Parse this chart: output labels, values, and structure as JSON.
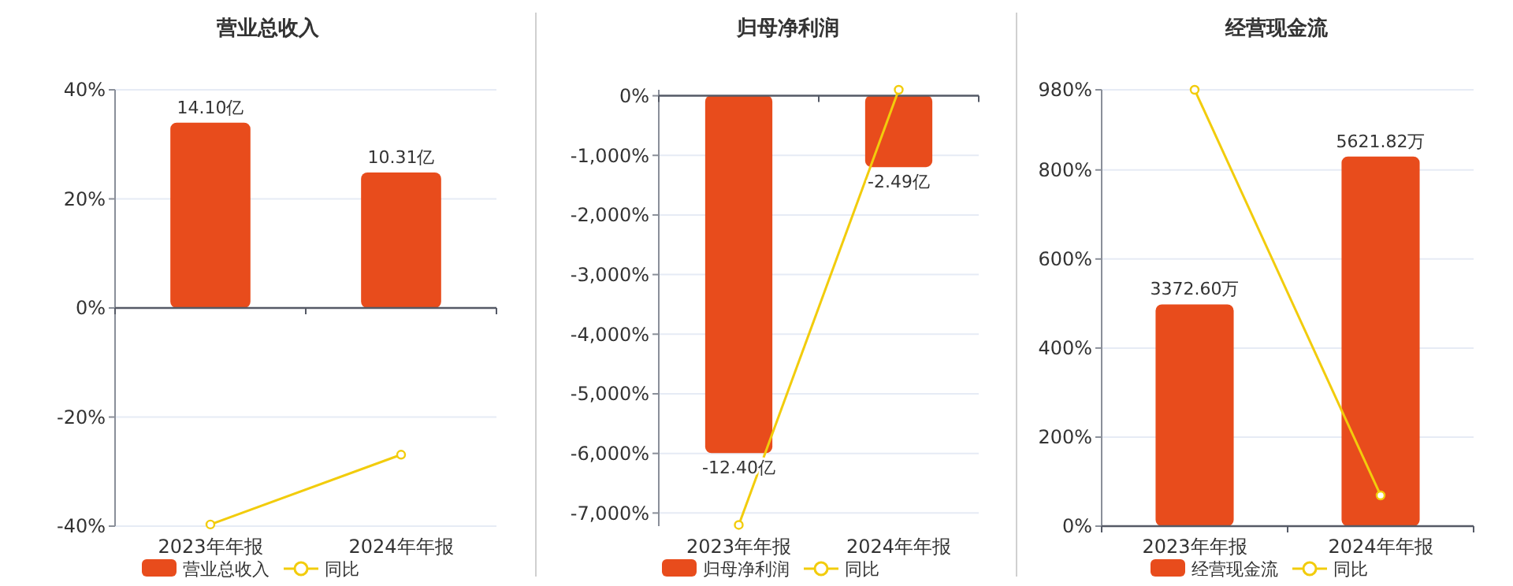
{
  "chart_data": [
    {
      "type": "bar",
      "title": "营业总收入",
      "categories": [
        "2023年年报",
        "2024年年报"
      ],
      "ylim": [
        -40,
        40
      ],
      "yticks": [
        {
          "value": -40,
          "label": "-40%"
        },
        {
          "value": -20,
          "label": "-20%"
        },
        {
          "value": 0,
          "label": "0%"
        },
        {
          "value": 20,
          "label": "20%"
        },
        {
          "value": 40,
          "label": "40%"
        }
      ],
      "y2lim": [
        -16.6,
        16.6
      ],
      "grid": "y",
      "legend": "bottom",
      "marker": "circle",
      "series": [
        {
          "name": "营业总收入",
          "axis": "y2",
          "color": "#e84c1c",
          "values": [
            14.1,
            10.31
          ],
          "value_labels": [
            "14.10亿",
            "10.31亿"
          ]
        },
        {
          "name": "同比",
          "type": "line",
          "color": "#f2cc0c",
          "values": [
            -39.7,
            -26.9
          ]
        }
      ]
    },
    {
      "type": "bar",
      "title": "归母净利润",
      "categories": [
        "2023年年报",
        "2024年年报"
      ],
      "ylim": [
        -7220,
        100
      ],
      "yticks": [
        {
          "value": -7000,
          "label": "-7,000%"
        },
        {
          "value": -6000,
          "label": "-6,000%"
        },
        {
          "value": -5000,
          "label": "-5,000%"
        },
        {
          "value": -4000,
          "label": "-4,000%"
        },
        {
          "value": -3000,
          "label": "-3,000%"
        },
        {
          "value": -2000,
          "label": "-2,000%"
        },
        {
          "value": -1000,
          "label": "-1,000%"
        },
        {
          "value": 0,
          "label": "0%"
        }
      ],
      "y2lim": [
        -14.93,
        0.19
      ],
      "grid": "y",
      "legend": "bottom",
      "marker": "circle",
      "series": [
        {
          "name": "归母净利润",
          "axis": "y2",
          "color": "#e84c1c",
          "values": [
            -12.4,
            -2.49
          ],
          "value_labels": [
            "-12.40亿",
            "-2.49亿"
          ]
        },
        {
          "name": "同比",
          "type": "line",
          "color": "#f2cc0c",
          "values": [
            -7200,
            100
          ]
        }
      ]
    },
    {
      "type": "bar",
      "title": "经营现金流",
      "categories": [
        "2023年年报",
        "2024年年报"
      ],
      "ylim": [
        0,
        980
      ],
      "yticks": [
        {
          "value": 0,
          "label": "0%"
        },
        {
          "value": 200,
          "label": "200%"
        },
        {
          "value": 400,
          "label": "400%"
        },
        {
          "value": 600,
          "label": "600%"
        },
        {
          "value": 800,
          "label": "800%"
        },
        {
          "value": 980,
          "label": "980%"
        }
      ],
      "y2lim": [
        0,
        6636
      ],
      "grid": "y",
      "legend": "bottom",
      "marker": "circle",
      "series": [
        {
          "name": "经营现金流",
          "axis": "y2",
          "color": "#e84c1c",
          "values": [
            3372.6,
            5621.82
          ],
          "value_labels": [
            "3372.60万",
            "5621.82万"
          ]
        },
        {
          "name": "同比",
          "type": "line",
          "color": "#f2cc0c",
          "values": [
            980,
            69
          ]
        }
      ]
    }
  ]
}
